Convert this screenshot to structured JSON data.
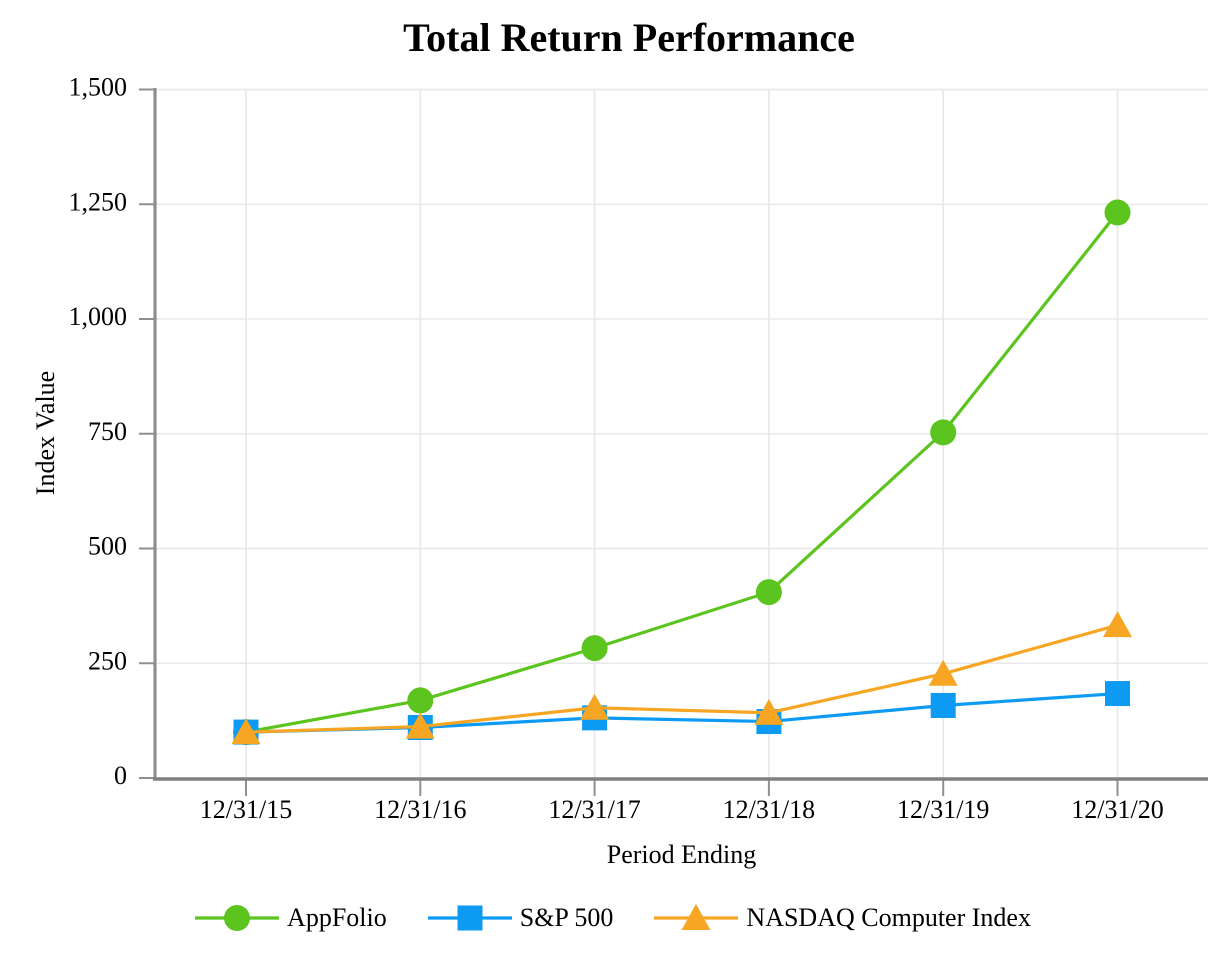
{
  "chart_data": {
    "type": "line",
    "title": "Total Return Performance",
    "xlabel": "Period Ending",
    "ylabel": "Index Value",
    "categories": [
      "12/31/15",
      "12/31/16",
      "12/31/17",
      "12/31/18",
      "12/31/19",
      "12/31/20"
    ],
    "series": [
      {
        "name": "AppFolio",
        "marker": "circle",
        "color": "#5cc41e",
        "values": [
          100,
          169,
          283,
          405,
          753,
          1232
        ]
      },
      {
        "name": "S&P 500",
        "marker": "square",
        "color": "#0d9af2",
        "values": [
          100,
          110,
          131,
          123,
          158,
          184
        ]
      },
      {
        "name": "NASDAQ Computer Index",
        "marker": "triangle",
        "color": "#f6a623",
        "values": [
          100,
          112,
          153,
          142,
          227,
          333
        ]
      }
    ],
    "ylim": [
      0,
      1500
    ],
    "yticks": [
      0,
      250,
      500,
      750,
      1000,
      1250,
      1500
    ],
    "ytick_labels": [
      "0",
      "250",
      "500",
      "750",
      "1,000",
      "1,250",
      "1,500"
    ],
    "grid": true,
    "legend_position": "bottom",
    "colors": {
      "gridline": "#e8e8e8",
      "axis_line": "#808080",
      "tick_mark": "#8f8f8f",
      "text": "#000000",
      "background": "#ffffff"
    }
  }
}
